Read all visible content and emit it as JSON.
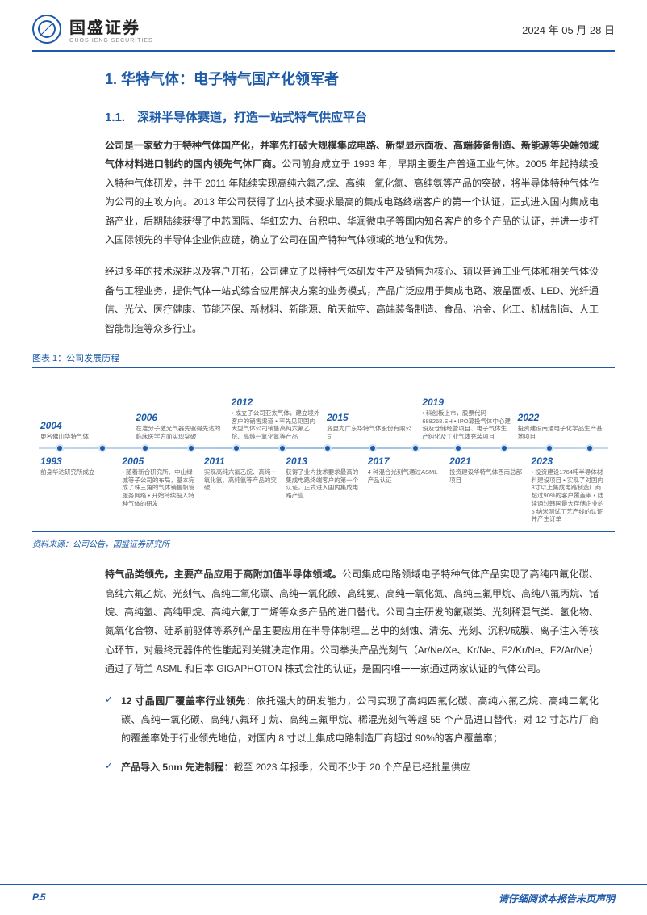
{
  "header": {
    "company_cn": "国盛证券",
    "company_en": "GUOSHENG SECURITIES",
    "date": "2024 年 05 月 28 日"
  },
  "section": {
    "h1": "1. 华特气体：电子特气国产化领军者",
    "h2": "1.1.　深耕半导体赛道，打造一站式特气供应平台",
    "p1_lead": "公司是一家致力于特种气体国产化，并率先打破大规模集成电路、新型显示面板、高端装备制造、新能源等尖端领域气体材料进口制约的国内领先气体厂商。",
    "p1_rest": "公司前身成立于 1993 年，早期主要生产普通工业气体。2005 年起持续投入特种气体研发，并于 2011 年陆续实现高纯六氟乙烷、高纯一氧化氮、高纯氨等产品的突破，将半导体特种气体作为公司的主攻方向。2013 年公司获得了业内技术要求最高的集成电路终端客户的第一个认证，正式进入国内集成电路产业，后期陆续获得了中芯国际、华虹宏力、台积电、华润微电子等国内知名客户的多个产品的认证，并进一步打入国际领先的半导体企业供应链，确立了公司在国产特种气体领域的地位和优势。",
    "p2": "经过多年的技术深耕以及客户开拓，公司建立了以特种气体研发生产及销售为核心、辅以普通工业气体和相关气体设备与工程业务，提供气体一站式综合应用解决方案的业务模式，产品广泛应用于集成电路、液晶面板、LED、光纤通信、光伏、医疗健康、节能环保、新材料、新能源、航天航空、高端装备制造、食品、冶金、化工、机械制造、人工智能制造等众多行业。"
  },
  "figure": {
    "title": "图表 1：公司发展历程",
    "source": "资料来源：公司公告，国盛证券研究所",
    "axis_color": "#cfe1f2",
    "dot_color": "#1d5aa8",
    "top_events": [
      {
        "year": "2004",
        "desc": "更名佛山华特气体"
      },
      {
        "year": "2006",
        "desc": "在准分子激光气器先驱得先达的临床医学方面实现突破"
      },
      {
        "year": "2012",
        "desc": "• 成立子公司亚太气体，建立境外客户的销售渠道\n• 率先见见国内大型气体公司销售高纯六氟乙烷、高纯一氧化氮等产品"
      },
      {
        "year": "2015",
        "desc": "变更为广东华特气体股份有限公司"
      },
      {
        "year": "2019",
        "desc": "• 科创板上市，股票代码688268.SH\n• IPO募投气体中心建设及仓储经营项目、电子气体生产纯化及工业气体充装项目"
      },
      {
        "year": "2022",
        "desc": "投资建设南通电子化学品生产基地项目"
      }
    ],
    "bottom_events": [
      {
        "year": "1993",
        "desc": "前身华达研究所成立"
      },
      {
        "year": "2005",
        "desc": "• 随着新合研究所、中山绿城等子公司的布局，基本完成了珠三角的气体销售帆管服务网络\n• 开始持续投入特种气体的研发"
      },
      {
        "year": "2011",
        "desc": "实现高纯六氟乙烷、高纯一氧化氨、高纯氨等产品的突破"
      },
      {
        "year": "2013",
        "desc": "获得了业内技术要求最高的集成电路终端客户的第一个认证，正式进入国内集成电路产业"
      },
      {
        "year": "2017",
        "desc": "4 种混合光刻气通过ASML产品认证"
      },
      {
        "year": "2021",
        "desc": "投资建设华特气体西南总部项目"
      },
      {
        "year": "2023",
        "desc": "• 投资建设1764吨半导体材料建设项目\n• 实现了对国内8寸以上集成电路制造厂商超过90%的客户覆盖率\n• 陆续通过韩国最大存储企业的 5 纳米测试工艺产线的认证并产生订单"
      }
    ],
    "dot_positions_pct": [
      3,
      10.5,
      18,
      26,
      34,
      42,
      50,
      58,
      65.5,
      73,
      81,
      89,
      96
    ]
  },
  "section2": {
    "p3_lead": "特气品类领先，主要产品应用于高附加值半导体领域。",
    "p3_rest": "公司集成电路领域电子特种气体产品实现了高纯四氟化碳、高纯六氟乙烷、光刻气、高纯二氧化碳、高纯一氧化碳、高纯氨、高纯一氧化氮、高纯三氟甲烷、高纯八氟丙烷、锗烷、高纯氢、高纯甲烷、高纯六氟丁二烯等众多产品的进口替代。公司自主研发的氟碳类、光刻稀混气类、氢化物、氮氧化合物、硅系前驱体等系列产品主要应用在半导体制程工艺中的刻蚀、清洗、光刻、沉积/成膜、离子注入等核心环节，对最终元器件的性能起到关键决定作用。公司拳头产品光刻气（Ar/Ne/Xe、Kr/Ne、F2/Kr/Ne、F2/Ar/Ne）通过了荷兰 ASML 和日本 GIGAPHOTON 株式会社的认证，是国内唯一一家通过两家认证的气体公司。",
    "bullets": [
      {
        "lead": "12 寸晶圆厂覆盖率行业领先",
        "rest": "：依托强大的研发能力，公司实现了高纯四氟化碳、高纯六氟乙烷、高纯二氧化碳、高纯一氧化碳、高纯八氟环丁烷、高纯三氟甲烷、稀混光刻气等超 55 个产品进口替代，对 12 寸芯片厂商的覆盖率处于行业领先地位，对国内 8 寸以上集成电路制造厂商超过 90%的客户覆盖率；"
      },
      {
        "lead": "产品导入 5nm 先进制程",
        "rest": "：截至 2023 年报季，公司不少于 20 个产品已经批量供应"
      }
    ]
  },
  "footer": {
    "page": "P.5",
    "disclaimer": "请仔细阅读本报告末页声明"
  },
  "colors": {
    "brand": "#1d5aa8",
    "text": "#333333",
    "muted": "#666666"
  }
}
